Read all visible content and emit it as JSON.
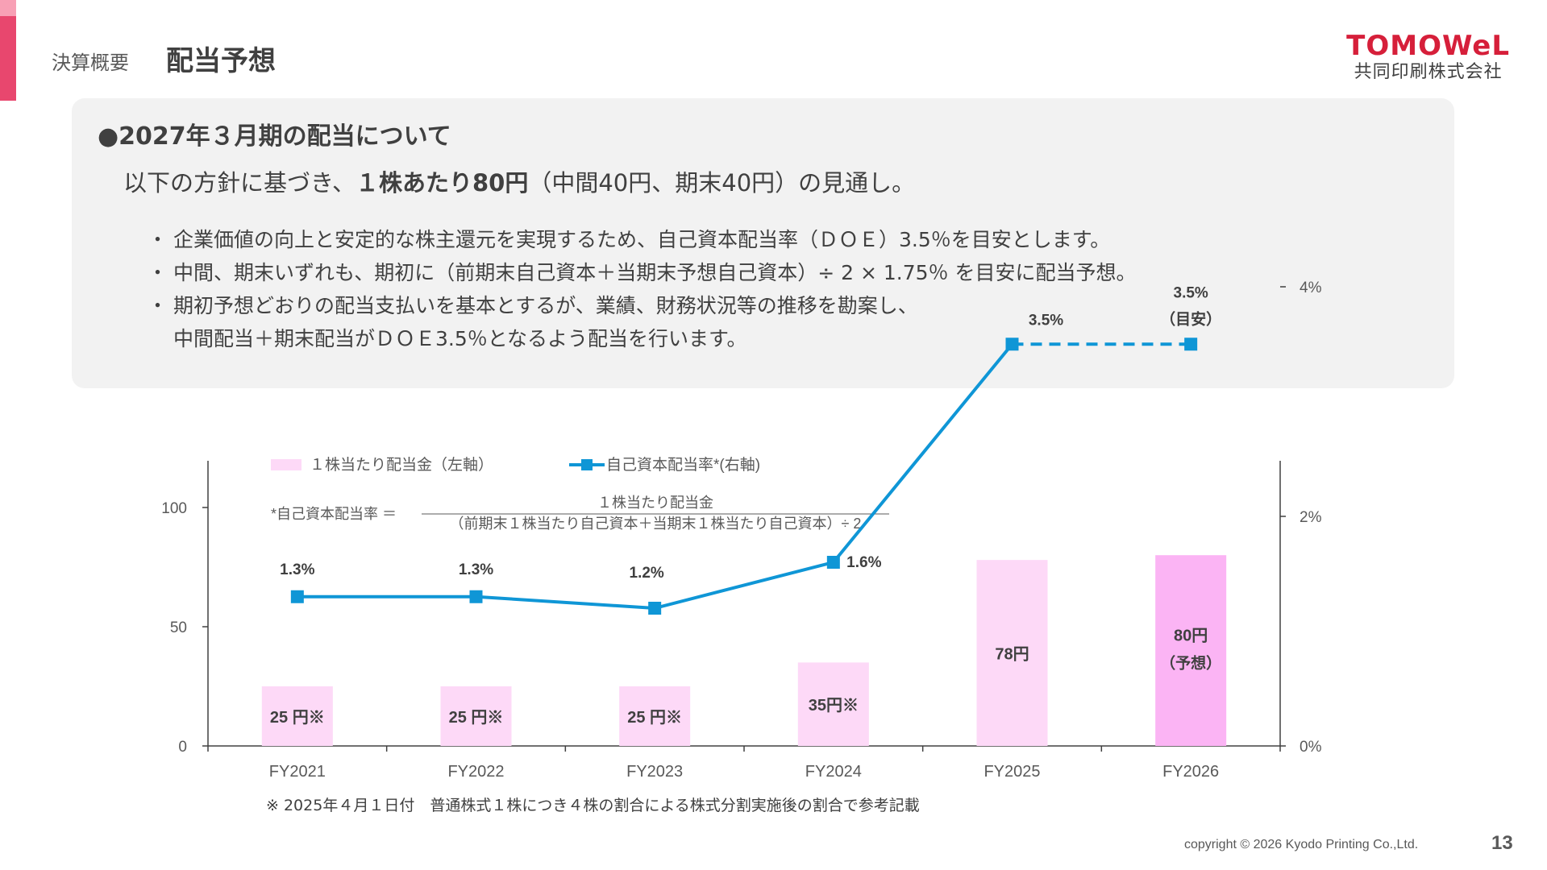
{
  "header": {
    "section": "決算概要",
    "title": "配当予想",
    "logo_main": "TOMOWeL",
    "logo_sub": "共同印刷株式会社"
  },
  "panel": {
    "heading": "●2027年３月期の配当について",
    "lead_prefix": "以下の方針に基づき、",
    "lead_bold": "１株あたり80円",
    "lead_suffix": "（中間40円、期末40円）の見通し。",
    "bullets": [
      "企業価値の向上と安定的な株主還元を実現するため、自己資本配当率（ＤＯＥ）3.5％を目安とします。",
      "中間、期末いずれも、期初に（前期末自己資本＋当期末予想自己資本）÷ 2 × 1.75％ を目安に配当予想。",
      "期初予想どおりの配当支払いを基本とするが、業績、財務状況等の推移を勘案し、",
      "中間配当＋期末配当がＤＯＥ3.5％となるよう配当を行います。"
    ]
  },
  "chart_data": {
    "type": "bar",
    "categories": [
      "FY2021",
      "FY2022",
      "FY2023",
      "FY2024",
      "FY2025",
      "FY2026"
    ],
    "series": [
      {
        "name": "１株当たり配当金（左軸）",
        "type": "bar",
        "axis": "left",
        "values": [
          25,
          25,
          25,
          35,
          78,
          80
        ],
        "labels": [
          "25 円※",
          "25 円※",
          "25 円※",
          "35円※",
          "78円",
          "80円"
        ],
        "sublabels": [
          "",
          "",
          "",
          "",
          "",
          "（予想）"
        ],
        "colors": [
          "#fdd9f7",
          "#fdd9f7",
          "#fdd9f7",
          "#fdd9f7",
          "#fdd9f7",
          "#fbb4f4"
        ]
      },
      {
        "name": "自己資本配当率*(右軸)",
        "type": "line",
        "axis": "right",
        "values": [
          1.3,
          1.3,
          1.2,
          1.6,
          3.5,
          3.5
        ],
        "labels": [
          "1.3%",
          "1.3%",
          "1.2%",
          "1.6%",
          "3.5%",
          "3.5%"
        ],
        "sublabels": [
          "",
          "",
          "",
          "",
          "",
          "（目安）"
        ],
        "color": "#0f96d6",
        "dashed_from_index": 4
      }
    ],
    "left_axis": {
      "ylim": [
        0,
        120
      ],
      "ticks": [
        0,
        50,
        100
      ],
      "tick_labels": [
        "0",
        "50",
        "100"
      ]
    },
    "right_axis": {
      "ylim": [
        0,
        5
      ],
      "ticks": [
        0,
        2,
        4
      ],
      "tick_labels": [
        "0%",
        "2%",
        "4%"
      ]
    },
    "formula": {
      "label": "*自己資本配当率 ＝",
      "numerator": "１株当たり配当金",
      "denominator": "（前期末１株当たり自己資本＋当期末１株当たり自己資本）÷ 2"
    },
    "legend_position": "top"
  },
  "footnote": "※ 2025年４月１日付　普通株式１株につき４株の割合による株式分割実施後の割合で参考記載",
  "footer": {
    "copyright": "copyright © 2026 Kyodo Printing Co.,Ltd.",
    "page": "13"
  }
}
